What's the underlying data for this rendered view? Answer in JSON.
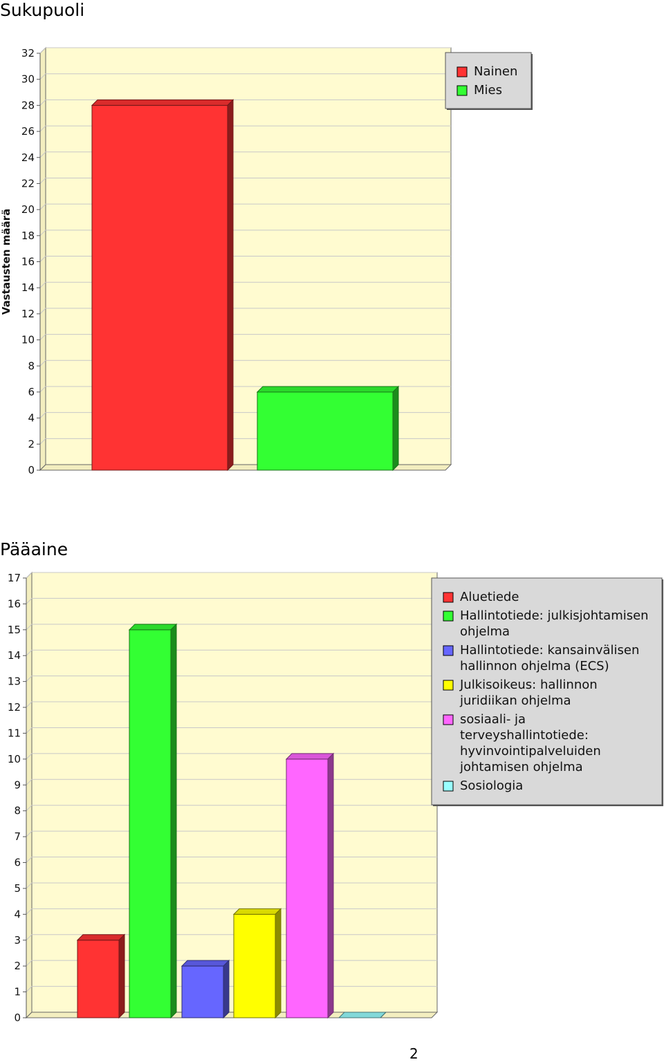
{
  "page_number": "2",
  "chart_data": [
    {
      "type": "bar",
      "title": "Sukupuoli",
      "ylabel": "Vastausten määrä",
      "ylim": [
        0,
        32
      ],
      "ytick_step": 2,
      "categories": [
        "Nainen",
        "Mies"
      ],
      "values": [
        28,
        6
      ],
      "colors": [
        "#ff3333",
        "#33ff33"
      ],
      "legend": [
        "Nainen",
        "Mies"
      ],
      "legend_position": "top-right",
      "grid": true,
      "background": "#fffbd0"
    },
    {
      "type": "bar",
      "title": "Pääaine",
      "ylabel": "",
      "ylim": [
        0,
        17
      ],
      "ytick_step": 1,
      "categories": [
        "Aluetiede",
        "Hallintotiede: julkisjohtamisen ohjelma",
        "Hallintotiede: kansainvälisen hallinnon ohjelma (ECS)",
        "Julkisoikeus: hallinnon juridiikan ohjelma",
        "sosiaali- ja terveyshallintotiede: hyvinvointipalveluiden johtamisen ohjelma",
        "Sosiologia"
      ],
      "values": [
        3,
        15,
        2,
        4,
        10,
        0
      ],
      "colors": [
        "#ff3333",
        "#33ff33",
        "#6666ff",
        "#ffff00",
        "#ff66ff",
        "#99ffff"
      ],
      "legend": [
        [
          "Aluetiede"
        ],
        [
          "Hallintotiede: julkisjohtamisen",
          "ohjelma"
        ],
        [
          "Hallintotiede: kansainvälisen",
          "hallinnon ohjelma (ECS)"
        ],
        [
          "Julkisoikeus: hallinnon",
          "juridiikan ohjelma"
        ],
        [
          "sosiaali- ja",
          "terveyshallintotiede:",
          "hyvinvointipalveluiden",
          "johtamisen ohjelma"
        ],
        [
          "Sosiologia"
        ]
      ],
      "legend_position": "right",
      "grid": true,
      "background": "#fffbd0"
    }
  ]
}
